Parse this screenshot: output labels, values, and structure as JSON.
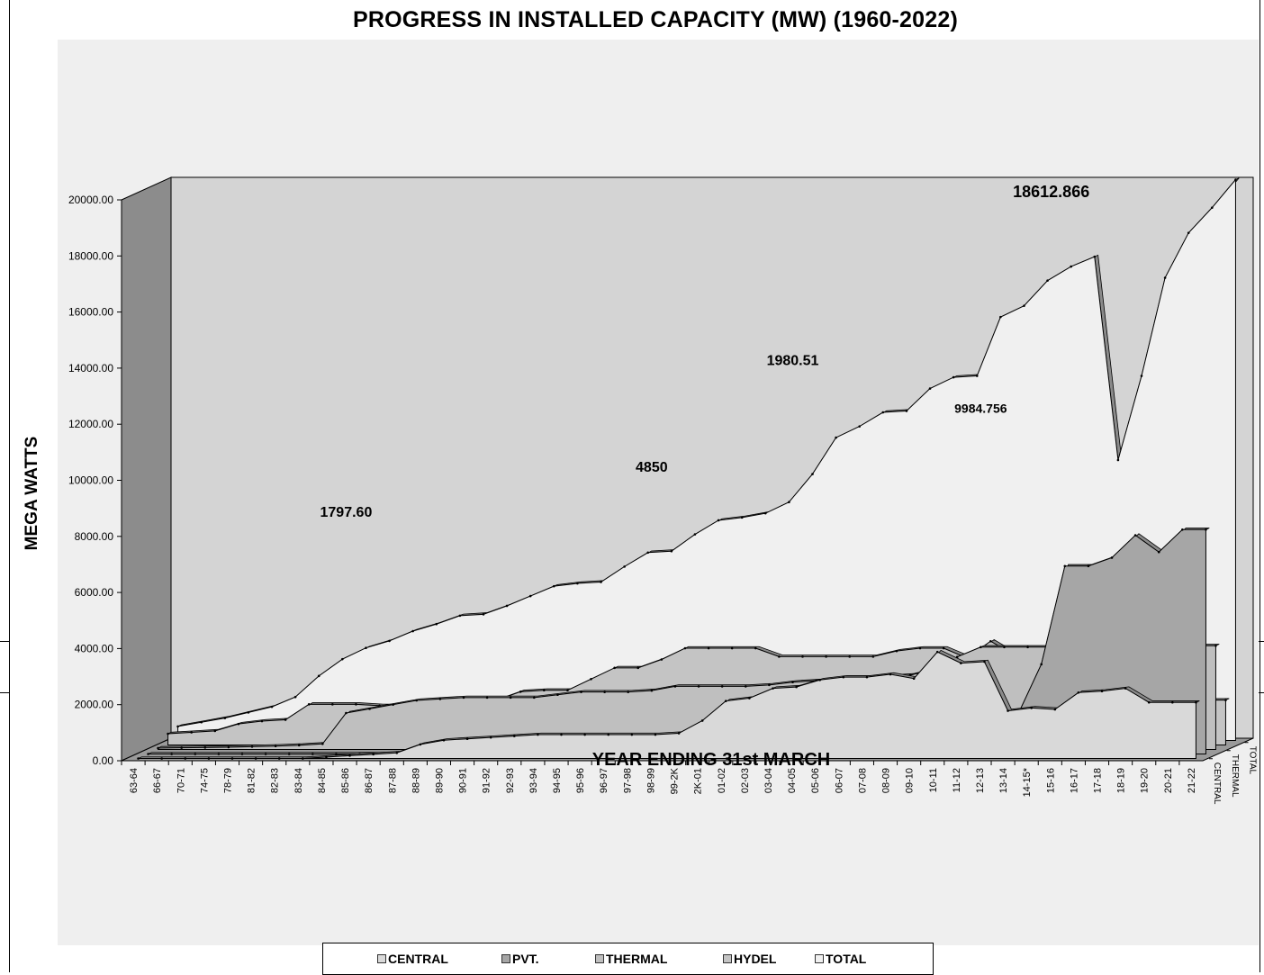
{
  "chart_data": {
    "type": "area",
    "title": "PROGRESS IN INSTALLED CAPACITY (MW)  (1960-2022)",
    "xlabel": "YEAR ENDING 31st MARCH",
    "ylabel": "MEGA WATTS",
    "ylim": [
      0,
      20000
    ],
    "y_ticks": [
      "0.00",
      "2000.00",
      "4000.00",
      "6000.00",
      "8000.00",
      "10000.00",
      "12000.00",
      "14000.00",
      "16000.00",
      "18000.00",
      "20000.00"
    ],
    "categories": [
      "63-64",
      "66-67",
      "70-71",
      "74-75",
      "78-79",
      "81-82",
      "82-83",
      "83-84",
      "84-85",
      "85-86",
      "86-87",
      "87-88",
      "88-89",
      "89-90",
      "90-91",
      "91-92",
      "92-93",
      "93-94",
      "94-95",
      "95-96",
      "96-97",
      "97-98",
      "98-99",
      "99-2K",
      "2K-01",
      "01-02",
      "02-03",
      "03-04",
      "04-05",
      "05-06",
      "06-07",
      "07-08",
      "08-09",
      "09-10",
      "10-11",
      "11-12",
      "12-13",
      "13-14",
      "14-15*",
      "15-16",
      "16-17",
      "17-18",
      "18-19",
      "19-20",
      "20-21",
      "21-22"
    ],
    "depth_labels": [
      "CENTRAL",
      "THERMAL",
      "TOTAL"
    ],
    "grid": false,
    "legend_position": "bottom",
    "series": [
      {
        "name": "CENTRAL",
        "color": "#d9d9d9",
        "values": [
          0,
          0,
          0,
          0,
          0,
          0,
          0,
          0,
          50,
          100,
          150,
          200,
          500,
          650,
          700,
          750,
          800,
          850,
          850,
          850,
          850,
          850,
          850,
          900,
          1350,
          2050,
          2150,
          2500,
          2550,
          2800,
          2900,
          2900,
          3000,
          2850,
          3800,
          3400,
          3450,
          1700,
          1800,
          1750,
          2350,
          2400,
          2500,
          2000,
          2000,
          2000
        ]
      },
      {
        "name": "PVT.",
        "color": "#a6a6a6",
        "values": [
          0,
          0,
          0,
          0,
          0,
          0,
          0,
          0,
          0,
          0,
          0,
          0,
          0,
          0,
          0,
          0,
          0,
          0,
          0,
          0,
          0,
          0,
          0,
          0,
          0,
          0,
          0,
          0,
          0,
          0,
          0,
          0,
          0,
          500,
          800,
          400,
          800,
          1400,
          3200,
          6700,
          6700,
          7000,
          7800,
          7200,
          8000,
          8000
        ]
      },
      {
        "name": "THERMAL",
        "color": "#bfbfbf",
        "values": [
          50,
          60,
          70,
          80,
          100,
          120,
          150,
          200,
          1300,
          1450,
          1600,
          1750,
          1800,
          1850,
          1850,
          1850,
          1850,
          1950,
          2050,
          2050,
          2050,
          2100,
          2250,
          2250,
          2250,
          2250,
          2300,
          2400,
          2450,
          2450,
          2500,
          2600,
          2650,
          2850,
          3300,
          3650,
          3650,
          3650,
          3650,
          3650,
          3650,
          3700,
          3700,
          3700,
          3700,
          3700
        ]
      },
      {
        "name": "HYDEL",
        "color": "#c4c4c4",
        "values": [
          400,
          450,
          500,
          750,
          850,
          900,
          1450,
          1450,
          1450,
          1400,
          1400,
          1400,
          1400,
          1400,
          1600,
          1900,
          1950,
          1950,
          2350,
          2750,
          2750,
          3050,
          3450,
          3450,
          3450,
          3450,
          3150,
          3150,
          3150,
          3150,
          3150,
          3350,
          3450,
          3450,
          3100,
          3700,
          3200,
          2950,
          1650,
          1650,
          1600,
          2050,
          2050,
          2050,
          1600,
          1600
        ]
      },
      {
        "name": "TOTAL",
        "color": "#f0f0f0",
        "values": [
          500,
          650,
          800,
          1000,
          1200,
          1550,
          2300,
          2900,
          3300,
          3550,
          3900,
          4150,
          4450,
          4500,
          4800,
          5150,
          5500,
          5600,
          5650,
          6200,
          6700,
          6750,
          7350,
          7850,
          7950,
          8100,
          8500,
          9500,
          10800,
          11200,
          11700,
          11750,
          12550,
          12950,
          13000,
          15100,
          15500,
          16400,
          16900,
          17250,
          10000,
          13000,
          16500,
          18100,
          19000,
          20000
        ]
      }
    ],
    "annotations": [
      {
        "text": "1797.60",
        "x": "84-85",
        "y": 8300
      },
      {
        "text": "4850",
        "x": "97-98",
        "y": 9900
      },
      {
        "text": "1980.51",
        "x": "03-04",
        "y": 13700
      },
      {
        "text": "9984.756",
        "x": "11-12",
        "y": 12000
      },
      {
        "text": "18612.866",
        "x": "14-15*",
        "y": 19700
      }
    ]
  }
}
